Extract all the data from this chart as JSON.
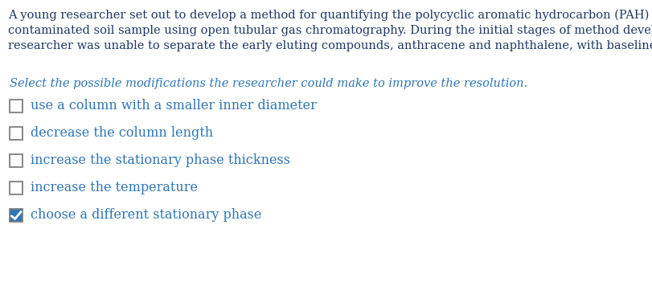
{
  "background_color": "#ffffff",
  "paragraph_lines": [
    "A young researcher set out to develop a method for quantifying the polycyclic aromatic hydrocarbon (PAH) content in a",
    "contaminated soil sample using open tubular gas chromatography. During the initial stages of method development, the",
    "researcher was unable to separate the early eluting compounds, anthracene and naphthalene, with baseline resolution."
  ],
  "paragraph_color": "#1f3864",
  "question_text": "Select the possible modifications the researcher could make to improve the resolution.",
  "question_color": "#2e75b6",
  "options": [
    "use a column with a smaller inner diameter",
    "decrease the column length",
    "increase the stationary phase thickness",
    "increase the temperature",
    "choose a different stationary phase"
  ],
  "option_color": "#2e75b6",
  "checked": [
    false,
    false,
    false,
    false,
    true
  ],
  "checkbox_edge_color": "#7f7f7f",
  "checkbox_fill_color": "#2e75b6",
  "checkmark_color": "#ffffff",
  "paragraph_fontsize": 10.5,
  "question_fontsize": 10.5,
  "option_fontsize": 11.5
}
